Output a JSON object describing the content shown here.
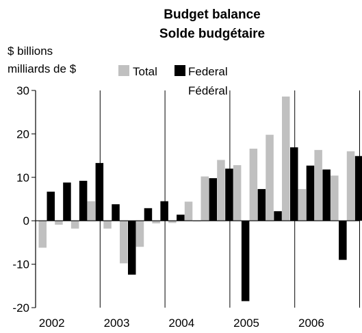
{
  "chart_data": {
    "type": "bar",
    "title_en": "Budget balance",
    "title_fr": "Solde budgétaire",
    "ylabel_en": "$ billions",
    "ylabel_fr": "milliards de $",
    "ylim": [
      -20,
      30
    ],
    "yticks": [
      30,
      20,
      10,
      0,
      -10,
      -20
    ],
    "x_year_labels": [
      "2002",
      "2003",
      "2004",
      "2005",
      "2006"
    ],
    "categories": [
      "2002 Q1",
      "2002 Q2",
      "2002 Q3",
      "2002 Q4",
      "2003 Q1",
      "2003 Q2",
      "2003 Q3",
      "2003 Q4",
      "2004 Q1",
      "2004 Q2",
      "2004 Q3",
      "2004 Q4",
      "2005 Q1",
      "2005 Q2",
      "2005 Q3",
      "2005 Q4",
      "2006 Q1",
      "2006 Q2",
      "2006 Q3",
      "2006 Q4"
    ],
    "series": [
      {
        "name": "Total",
        "color": "#c0c0c0",
        "values": [
          -6.2,
          -0.9,
          -1.8,
          4.5,
          -1.8,
          -9.8,
          -6.0,
          -0.6,
          -0.5,
          4.4,
          10.2,
          14.0,
          12.8,
          16.6,
          19.8,
          28.6,
          7.3,
          16.3,
          10.4,
          16.0
        ]
      },
      {
        "name": "Federal",
        "name_fr": "Fédéral",
        "color": "#000000",
        "values": [
          6.7,
          8.8,
          9.2,
          13.3,
          3.8,
          -12.4,
          2.9,
          4.5,
          1.4,
          0,
          9.8,
          12.0,
          -18.5,
          7.3,
          2.2,
          16.9,
          12.7,
          11.8,
          -9.0,
          14.9
        ]
      }
    ],
    "legend_placement": "top-left",
    "grid": false
  }
}
